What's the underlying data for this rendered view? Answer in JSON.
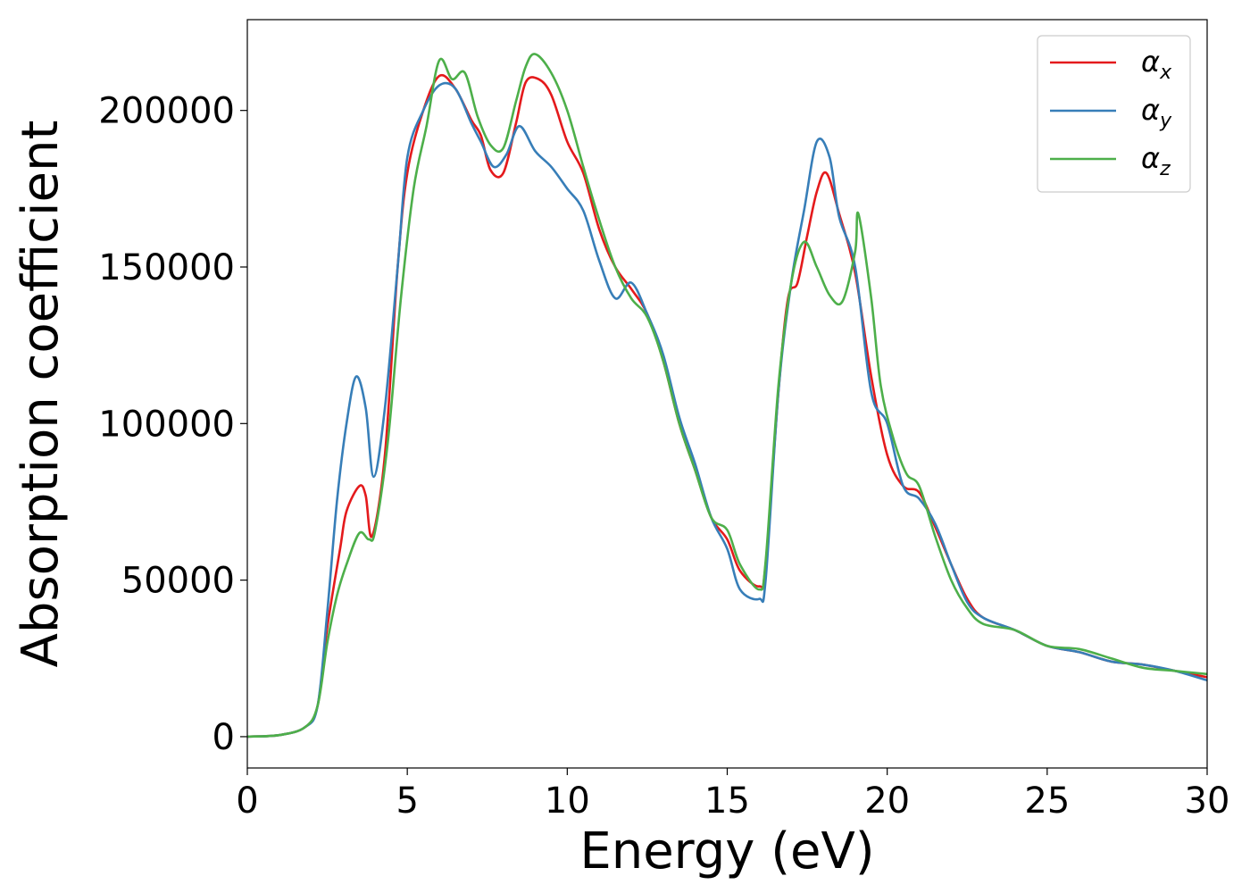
{
  "chart_data": {
    "type": "line",
    "title": "",
    "xlabel": "Energy (eV)",
    "ylabel": "Absorption coefficient",
    "xlim": [
      0,
      30
    ],
    "ylim": [
      -10000,
      229000
    ],
    "xticks": [
      0,
      5,
      10,
      15,
      20,
      25,
      30
    ],
    "yticks": [
      0,
      50000,
      100000,
      150000,
      200000
    ],
    "grid": false,
    "legend_position": "top-right",
    "series": [
      {
        "name": "α",
        "subscript": "x",
        "color": "#e41a1c",
        "points": [
          [
            0,
            0
          ],
          [
            1,
            500
          ],
          [
            1.8,
            3000
          ],
          [
            2.2,
            10000
          ],
          [
            2.5,
            35000
          ],
          [
            2.9,
            60000
          ],
          [
            3.1,
            72000
          ],
          [
            3.5,
            80000
          ],
          [
            3.7,
            77000
          ],
          [
            3.9,
            64000
          ],
          [
            4.3,
            90000
          ],
          [
            4.7,
            150000
          ],
          [
            5.0,
            180000
          ],
          [
            5.5,
            200000
          ],
          [
            6.0,
            211000
          ],
          [
            6.5,
            207000
          ],
          [
            7.0,
            197000
          ],
          [
            7.3,
            192000
          ],
          [
            7.6,
            181000
          ],
          [
            8.0,
            180000
          ],
          [
            8.4,
            196000
          ],
          [
            8.7,
            209000
          ],
          [
            9.1,
            210000
          ],
          [
            9.5,
            205000
          ],
          [
            10.0,
            190000
          ],
          [
            10.5,
            180000
          ],
          [
            11.0,
            162000
          ],
          [
            11.5,
            150000
          ],
          [
            12.0,
            143000
          ],
          [
            12.5,
            135000
          ],
          [
            13.0,
            120000
          ],
          [
            13.5,
            100000
          ],
          [
            14.0,
            85000
          ],
          [
            14.5,
            70000
          ],
          [
            15.0,
            63000
          ],
          [
            15.4,
            53000
          ],
          [
            16.0,
            48000
          ],
          [
            16.2,
            55000
          ],
          [
            16.6,
            110000
          ],
          [
            16.9,
            140000
          ],
          [
            17.2,
            145000
          ],
          [
            17.5,
            160000
          ],
          [
            17.8,
            174000
          ],
          [
            18.1,
            180000
          ],
          [
            18.5,
            167000
          ],
          [
            19.0,
            148000
          ],
          [
            19.5,
            115000
          ],
          [
            20.0,
            90000
          ],
          [
            20.5,
            80000
          ],
          [
            21.0,
            78000
          ],
          [
            21.5,
            67000
          ],
          [
            22.0,
            55000
          ],
          [
            22.5,
            44000
          ],
          [
            23.0,
            38000
          ],
          [
            24.0,
            34000
          ],
          [
            25.0,
            29000
          ],
          [
            26.0,
            27000
          ],
          [
            27.0,
            24000
          ],
          [
            28.0,
            23000
          ],
          [
            29.0,
            21000
          ],
          [
            30.0,
            19000
          ]
        ]
      },
      {
        "name": "α",
        "subscript": "y",
        "color": "#377eb8",
        "points": [
          [
            0,
            0
          ],
          [
            1,
            500
          ],
          [
            1.8,
            3000
          ],
          [
            2.2,
            10000
          ],
          [
            2.5,
            40000
          ],
          [
            2.8,
            75000
          ],
          [
            3.1,
            100000
          ],
          [
            3.4,
            115000
          ],
          [
            3.7,
            105000
          ],
          [
            3.95,
            83000
          ],
          [
            4.3,
            105000
          ],
          [
            4.7,
            150000
          ],
          [
            5.0,
            185000
          ],
          [
            5.5,
            200000
          ],
          [
            6.0,
            208000
          ],
          [
            6.5,
            207000
          ],
          [
            7.0,
            196000
          ],
          [
            7.3,
            190000
          ],
          [
            7.7,
            182000
          ],
          [
            8.1,
            186000
          ],
          [
            8.5,
            195000
          ],
          [
            9.0,
            187000
          ],
          [
            9.5,
            182000
          ],
          [
            10.0,
            175000
          ],
          [
            10.5,
            168000
          ],
          [
            11.0,
            152000
          ],
          [
            11.5,
            140000
          ],
          [
            12.0,
            145000
          ],
          [
            12.5,
            135000
          ],
          [
            13.0,
            122000
          ],
          [
            13.5,
            102000
          ],
          [
            14.0,
            87000
          ],
          [
            14.5,
            70000
          ],
          [
            15.0,
            60000
          ],
          [
            15.4,
            47000
          ],
          [
            16.0,
            44000
          ],
          [
            16.2,
            50000
          ],
          [
            16.6,
            110000
          ],
          [
            17.0,
            145000
          ],
          [
            17.4,
            168000
          ],
          [
            17.8,
            190000
          ],
          [
            18.2,
            185000
          ],
          [
            18.5,
            166000
          ],
          [
            19.0,
            150000
          ],
          [
            19.5,
            110000
          ],
          [
            20.0,
            100000
          ],
          [
            20.5,
            80000
          ],
          [
            21.0,
            76000
          ],
          [
            21.5,
            68000
          ],
          [
            22.0,
            55000
          ],
          [
            22.5,
            43000
          ],
          [
            23.0,
            38000
          ],
          [
            24.0,
            34000
          ],
          [
            25.0,
            29000
          ],
          [
            26.0,
            27000
          ],
          [
            27.0,
            24000
          ],
          [
            28.0,
            23000
          ],
          [
            29.0,
            21000
          ],
          [
            30.0,
            18000
          ]
        ]
      },
      {
        "name": "α",
        "subscript": "z",
        "color": "#4daf4a",
        "points": [
          [
            0,
            0
          ],
          [
            1,
            500
          ],
          [
            1.8,
            3000
          ],
          [
            2.2,
            10000
          ],
          [
            2.5,
            30000
          ],
          [
            2.8,
            45000
          ],
          [
            3.1,
            55000
          ],
          [
            3.5,
            65000
          ],
          [
            3.8,
            63000
          ],
          [
            4.0,
            66000
          ],
          [
            4.4,
            95000
          ],
          [
            4.8,
            140000
          ],
          [
            5.2,
            175000
          ],
          [
            5.6,
            195000
          ],
          [
            6.0,
            216000
          ],
          [
            6.4,
            210000
          ],
          [
            6.8,
            212000
          ],
          [
            7.2,
            198000
          ],
          [
            7.6,
            189000
          ],
          [
            8.0,
            188000
          ],
          [
            8.4,
            203000
          ],
          [
            8.7,
            214000
          ],
          [
            9.0,
            218000
          ],
          [
            9.5,
            212000
          ],
          [
            10.0,
            200000
          ],
          [
            10.5,
            182000
          ],
          [
            11.0,
            165000
          ],
          [
            11.5,
            150000
          ],
          [
            12.0,
            140000
          ],
          [
            12.5,
            134000
          ],
          [
            13.0,
            120000
          ],
          [
            13.5,
            100000
          ],
          [
            14.0,
            85000
          ],
          [
            14.5,
            70000
          ],
          [
            15.0,
            66000
          ],
          [
            15.4,
            55000
          ],
          [
            16.0,
            47000
          ],
          [
            16.2,
            56000
          ],
          [
            16.6,
            112000
          ],
          [
            17.0,
            145000
          ],
          [
            17.4,
            158000
          ],
          [
            17.8,
            150000
          ],
          [
            18.2,
            141000
          ],
          [
            18.6,
            139000
          ],
          [
            19.0,
            155000
          ],
          [
            19.1,
            167000
          ],
          [
            19.5,
            140000
          ],
          [
            19.8,
            112000
          ],
          [
            20.2,
            95000
          ],
          [
            20.6,
            84000
          ],
          [
            21.0,
            80000
          ],
          [
            21.5,
            64000
          ],
          [
            22.0,
            50000
          ],
          [
            22.5,
            41000
          ],
          [
            23.0,
            36000
          ],
          [
            24.0,
            34000
          ],
          [
            25.0,
            29000
          ],
          [
            26.0,
            28000
          ],
          [
            27.0,
            25000
          ],
          [
            28.0,
            22000
          ],
          [
            29.0,
            21000
          ],
          [
            30.0,
            20000
          ]
        ]
      }
    ]
  }
}
